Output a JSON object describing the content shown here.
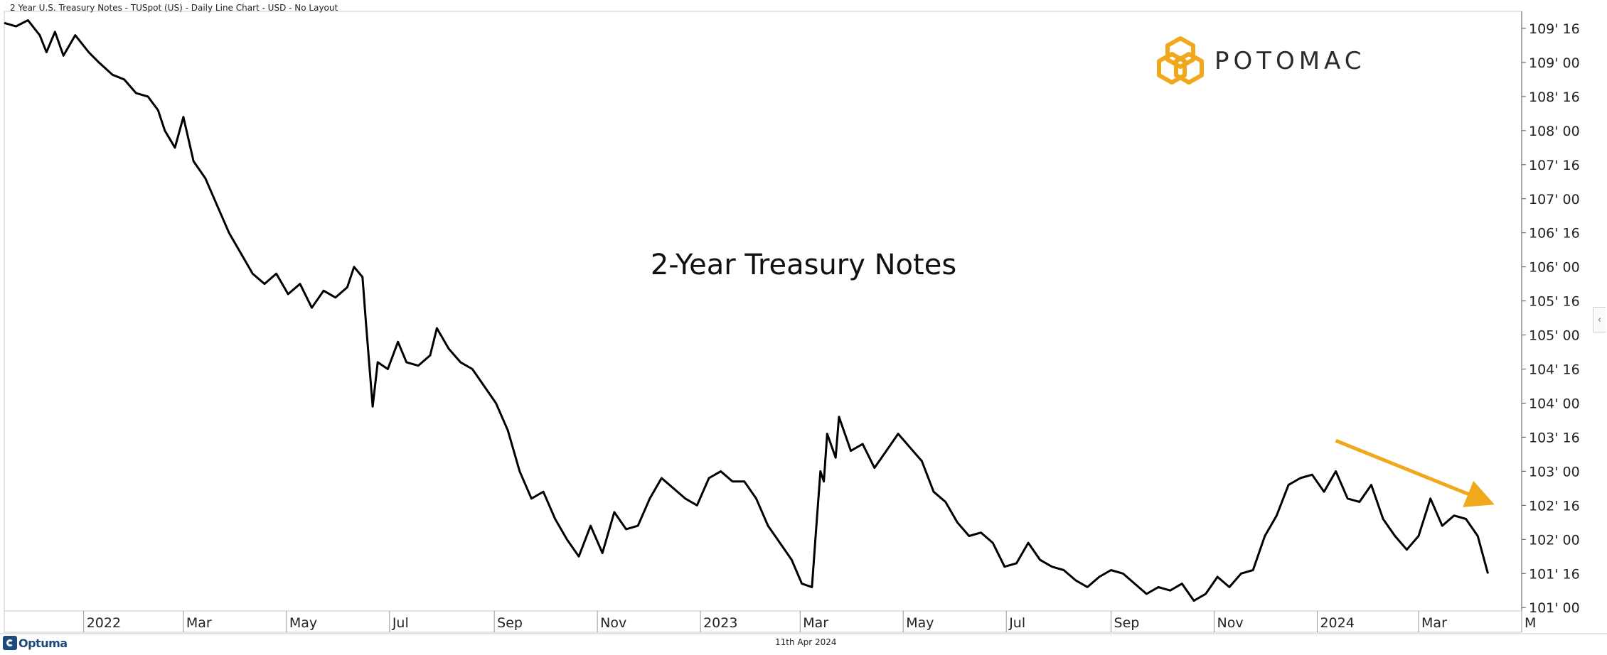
{
  "header": {
    "title": "2 Year U.S. Treasury Notes - TUSpot (US) - Daily Line Chart - USD - No Layout"
  },
  "footer": {
    "date": "11th Apr 2024",
    "brand": "Optuma"
  },
  "logo": {
    "text": "POTOMAC",
    "color": "#f0a81c"
  },
  "controls": {
    "collapse_glyph": "‹"
  },
  "chart_data": {
    "type": "line",
    "title": "2-Year Treasury Notes",
    "xlabel": "",
    "ylabel": "",
    "line_color": "#000000",
    "annotation_arrow_color": "#f0a81c",
    "grid": false,
    "y_ticks": [
      {
        "value": 101.0,
        "label": "101' 00"
      },
      {
        "value": 101.5,
        "label": "101' 16"
      },
      {
        "value": 102.0,
        "label": "102' 00"
      },
      {
        "value": 102.5,
        "label": "102' 16"
      },
      {
        "value": 103.0,
        "label": "103' 00"
      },
      {
        "value": 103.5,
        "label": "103' 16"
      },
      {
        "value": 104.0,
        "label": "104' 00"
      },
      {
        "value": 104.5,
        "label": "104' 16"
      },
      {
        "value": 105.0,
        "label": "105' 00"
      },
      {
        "value": 105.5,
        "label": "105' 16"
      },
      {
        "value": 106.0,
        "label": "106' 00"
      },
      {
        "value": 106.5,
        "label": "106' 16"
      },
      {
        "value": 107.0,
        "label": "107' 00"
      },
      {
        "value": 107.5,
        "label": "107' 16"
      },
      {
        "value": 108.0,
        "label": "108' 00"
      },
      {
        "value": 108.5,
        "label": "108' 16"
      },
      {
        "value": 109.0,
        "label": "109' 00"
      },
      {
        "value": 109.5,
        "label": "109' 16"
      }
    ],
    "ylim": [
      100.95,
      109.75
    ],
    "x_ticks": [
      {
        "date": "2022-01-01",
        "label": "2022"
      },
      {
        "date": "2022-03-01",
        "label": "Mar"
      },
      {
        "date": "2022-05-01",
        "label": "May"
      },
      {
        "date": "2022-07-01",
        "label": "Jul"
      },
      {
        "date": "2022-09-01",
        "label": "Sep"
      },
      {
        "date": "2022-11-01",
        "label": "Nov"
      },
      {
        "date": "2023-01-01",
        "label": "2023"
      },
      {
        "date": "2023-03-01",
        "label": "Mar"
      },
      {
        "date": "2023-05-01",
        "label": "May"
      },
      {
        "date": "2023-07-01",
        "label": "Jul"
      },
      {
        "date": "2023-09-01",
        "label": "Sep"
      },
      {
        "date": "2023-11-01",
        "label": "Nov"
      },
      {
        "date": "2024-01-01",
        "label": "2024"
      },
      {
        "date": "2024-03-01",
        "label": "Mar"
      },
      {
        "date": "2024-05-01",
        "label": "M"
      }
    ],
    "xlim": [
      "2021-11-15",
      "2024-05-01"
    ],
    "series": [
      {
        "points": [
          [
            "2021-11-15",
            109.58
          ],
          [
            "2021-11-22",
            109.53
          ],
          [
            "2021-11-29",
            109.62
          ],
          [
            "2021-12-06",
            109.4
          ],
          [
            "2021-12-10",
            109.15
          ],
          [
            "2021-12-15",
            109.45
          ],
          [
            "2021-12-20",
            109.1
          ],
          [
            "2021-12-27",
            109.4
          ],
          [
            "2022-01-04",
            109.15
          ],
          [
            "2022-01-10",
            109.0
          ],
          [
            "2022-01-18",
            108.82
          ],
          [
            "2022-01-25",
            108.75
          ],
          [
            "2022-02-01",
            108.55
          ],
          [
            "2022-02-08",
            108.5
          ],
          [
            "2022-02-14",
            108.3
          ],
          [
            "2022-02-18",
            108.0
          ],
          [
            "2022-02-24",
            107.75
          ],
          [
            "2022-03-01",
            108.2
          ],
          [
            "2022-03-07",
            107.55
          ],
          [
            "2022-03-14",
            107.3
          ],
          [
            "2022-03-21",
            106.9
          ],
          [
            "2022-03-28",
            106.5
          ],
          [
            "2022-04-04",
            106.2
          ],
          [
            "2022-04-11",
            105.9
          ],
          [
            "2022-04-18",
            105.75
          ],
          [
            "2022-04-25",
            105.9
          ],
          [
            "2022-05-02",
            105.6
          ],
          [
            "2022-05-09",
            105.75
          ],
          [
            "2022-05-16",
            105.4
          ],
          [
            "2022-05-23",
            105.65
          ],
          [
            "2022-05-30",
            105.55
          ],
          [
            "2022-06-06",
            105.7
          ],
          [
            "2022-06-10",
            106.0
          ],
          [
            "2022-06-15",
            105.85
          ],
          [
            "2022-06-17",
            105.2
          ],
          [
            "2022-06-21",
            103.95
          ],
          [
            "2022-06-24",
            104.6
          ],
          [
            "2022-06-30",
            104.5
          ],
          [
            "2022-07-06",
            104.9
          ],
          [
            "2022-07-11",
            104.6
          ],
          [
            "2022-07-18",
            104.55
          ],
          [
            "2022-07-25",
            104.7
          ],
          [
            "2022-07-29",
            105.1
          ],
          [
            "2022-08-05",
            104.8
          ],
          [
            "2022-08-12",
            104.6
          ],
          [
            "2022-08-19",
            104.5
          ],
          [
            "2022-08-26",
            104.25
          ],
          [
            "2022-09-02",
            104.0
          ],
          [
            "2022-09-09",
            103.6
          ],
          [
            "2022-09-16",
            103.0
          ],
          [
            "2022-09-23",
            102.6
          ],
          [
            "2022-09-30",
            102.7
          ],
          [
            "2022-10-07",
            102.3
          ],
          [
            "2022-10-14",
            102.0
          ],
          [
            "2022-10-21",
            101.75
          ],
          [
            "2022-10-28",
            102.2
          ],
          [
            "2022-11-04",
            101.8
          ],
          [
            "2022-11-11",
            102.4
          ],
          [
            "2022-11-18",
            102.15
          ],
          [
            "2022-11-25",
            102.2
          ],
          [
            "2022-12-02",
            102.6
          ],
          [
            "2022-12-09",
            102.9
          ],
          [
            "2022-12-16",
            102.75
          ],
          [
            "2022-12-23",
            102.6
          ],
          [
            "2022-12-30",
            102.5
          ],
          [
            "2023-01-06",
            102.9
          ],
          [
            "2023-01-13",
            103.0
          ],
          [
            "2023-01-20",
            102.85
          ],
          [
            "2023-01-27",
            102.85
          ],
          [
            "2023-02-03",
            102.6
          ],
          [
            "2023-02-10",
            102.2
          ],
          [
            "2023-02-17",
            101.95
          ],
          [
            "2023-02-24",
            101.7
          ],
          [
            "2023-03-02",
            101.35
          ],
          [
            "2023-03-08",
            101.3
          ],
          [
            "2023-03-10",
            102.0
          ],
          [
            "2023-03-13",
            103.0
          ],
          [
            "2023-03-15",
            102.85
          ],
          [
            "2023-03-17",
            103.55
          ],
          [
            "2023-03-22",
            103.2
          ],
          [
            "2023-03-24",
            103.8
          ],
          [
            "2023-03-31",
            103.3
          ],
          [
            "2023-04-07",
            103.4
          ],
          [
            "2023-04-14",
            103.05
          ],
          [
            "2023-04-21",
            103.3
          ],
          [
            "2023-04-28",
            103.55
          ],
          [
            "2023-05-05",
            103.35
          ],
          [
            "2023-05-12",
            103.15
          ],
          [
            "2023-05-19",
            102.7
          ],
          [
            "2023-05-26",
            102.55
          ],
          [
            "2023-06-02",
            102.25
          ],
          [
            "2023-06-09",
            102.05
          ],
          [
            "2023-06-16",
            102.1
          ],
          [
            "2023-06-23",
            101.95
          ],
          [
            "2023-06-30",
            101.6
          ],
          [
            "2023-07-07",
            101.65
          ],
          [
            "2023-07-14",
            101.95
          ],
          [
            "2023-07-21",
            101.7
          ],
          [
            "2023-07-28",
            101.6
          ],
          [
            "2023-08-04",
            101.55
          ],
          [
            "2023-08-11",
            101.4
          ],
          [
            "2023-08-18",
            101.3
          ],
          [
            "2023-08-25",
            101.45
          ],
          [
            "2023-09-01",
            101.55
          ],
          [
            "2023-09-08",
            101.5
          ],
          [
            "2023-09-15",
            101.35
          ],
          [
            "2023-09-22",
            101.2
          ],
          [
            "2023-09-29",
            101.3
          ],
          [
            "2023-10-06",
            101.25
          ],
          [
            "2023-10-13",
            101.35
          ],
          [
            "2023-10-20",
            101.1
          ],
          [
            "2023-10-27",
            101.2
          ],
          [
            "2023-11-03",
            101.45
          ],
          [
            "2023-11-10",
            101.3
          ],
          [
            "2023-11-17",
            101.5
          ],
          [
            "2023-11-24",
            101.55
          ],
          [
            "2023-12-01",
            102.05
          ],
          [
            "2023-12-08",
            102.35
          ],
          [
            "2023-12-15",
            102.8
          ],
          [
            "2023-12-22",
            102.9
          ],
          [
            "2023-12-29",
            102.95
          ],
          [
            "2024-01-05",
            102.7
          ],
          [
            "2024-01-12",
            103.0
          ],
          [
            "2024-01-19",
            102.6
          ],
          [
            "2024-01-26",
            102.55
          ],
          [
            "2024-02-02",
            102.8
          ],
          [
            "2024-02-09",
            102.3
          ],
          [
            "2024-02-16",
            102.05
          ],
          [
            "2024-02-23",
            101.85
          ],
          [
            "2024-03-01",
            102.05
          ],
          [
            "2024-03-08",
            102.6
          ],
          [
            "2024-03-15",
            102.2
          ],
          [
            "2024-03-22",
            102.35
          ],
          [
            "2024-03-29",
            102.3
          ],
          [
            "2024-04-05",
            102.05
          ],
          [
            "2024-04-11",
            101.5
          ]
        ]
      }
    ],
    "annotations": [
      {
        "type": "arrow",
        "from": [
          "2024-01-12",
          103.45
        ],
        "to": [
          "2024-04-11",
          102.55
        ]
      }
    ]
  }
}
